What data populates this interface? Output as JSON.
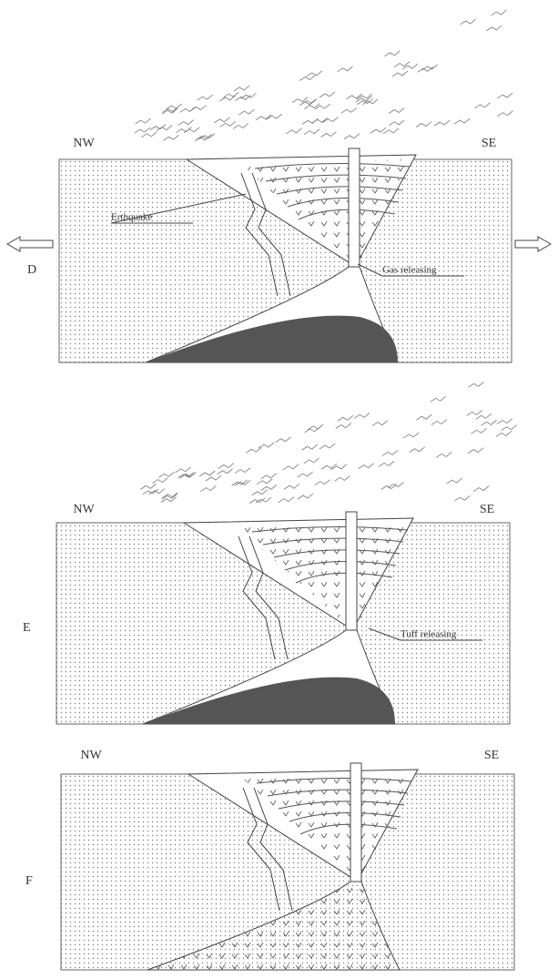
{
  "panels": [
    {
      "label": "D",
      "left": "NW",
      "right": "SE",
      "annotations": [
        "Erthquake",
        "Gas releasing"
      ]
    },
    {
      "label": "E",
      "left": "NW",
      "right": "SE",
      "annotations": [
        "Tuff releasing"
      ]
    },
    {
      "label": "F",
      "left": "NW",
      "right": "SE",
      "annotations": []
    }
  ]
}
